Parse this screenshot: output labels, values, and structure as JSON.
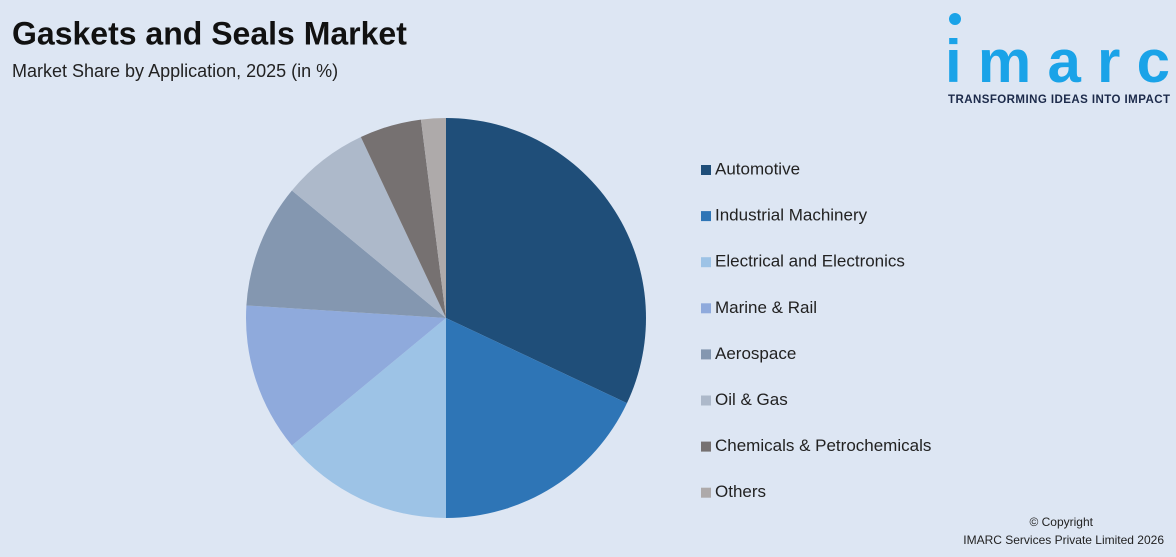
{
  "chart_data": {
    "type": "pie",
    "title": "Gaskets and Seals Market",
    "subtitle": "Market Share by Application, 2025 (in %)",
    "categories": [
      "Automotive",
      "Industrial Machinery",
      "Electrical and Electronics",
      "Marine & Rail",
      "Aerospace",
      "Oil & Gas",
      "Chemicals & Petrochemicals",
      "Others"
    ],
    "values": [
      32,
      18,
      14,
      12,
      10,
      7,
      5,
      2
    ],
    "colors": [
      "#1f4e79",
      "#2e75b6",
      "#9dc3e6",
      "#8faadc",
      "#8497b0",
      "#adb9ca",
      "#767171",
      "#aeaaaa"
    ]
  },
  "logo": {
    "name": "imarc",
    "tagline": "TRANSFORMING IDEAS INTO IMPACT"
  },
  "footer": {
    "copyright": "© Copyright",
    "company": "IMARC Services Private Limited 2026"
  }
}
